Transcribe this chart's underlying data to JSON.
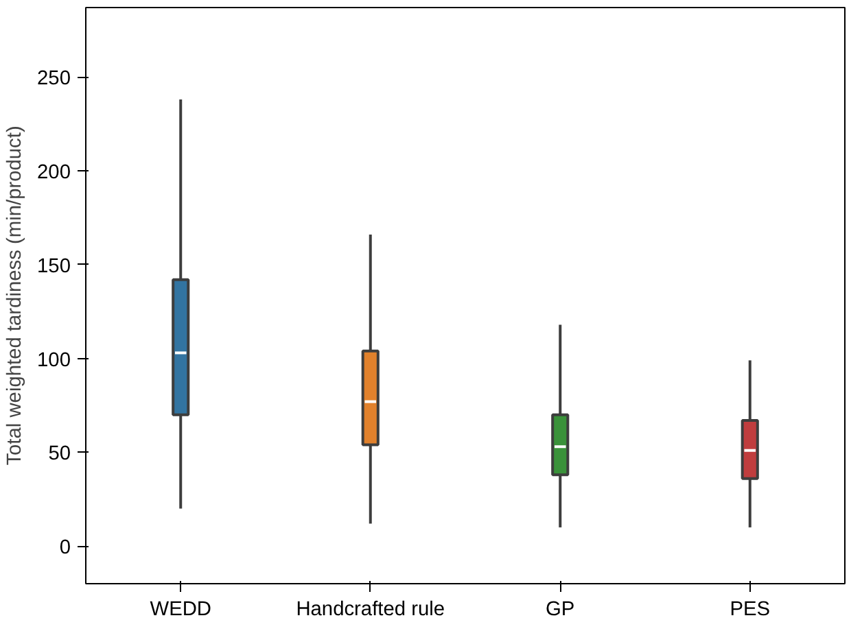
{
  "chart_data": {
    "type": "box",
    "ylabel": "Total weighted tardiness (min/product)",
    "categories": [
      "WEDD",
      "Handcrafted rule",
      "GP",
      "PES"
    ],
    "colors": [
      "#3274a1",
      "#e1812c",
      "#3a923a",
      "#c03d3e"
    ],
    "boxes": [
      {
        "low": 20,
        "q1": 70,
        "median": 103,
        "q3": 142,
        "high": 238
      },
      {
        "low": 12,
        "q1": 54,
        "median": 77,
        "q3": 104,
        "high": 166
      },
      {
        "low": 10,
        "q1": 38,
        "median": 53,
        "q3": 70,
        "high": 118
      },
      {
        "low": 10,
        "q1": 36,
        "median": 51,
        "q3": 67,
        "high": 99
      }
    ],
    "ylim": [
      -20,
      287
    ],
    "yticks": [
      0,
      50,
      100,
      150,
      200,
      250
    ],
    "grid": false
  }
}
